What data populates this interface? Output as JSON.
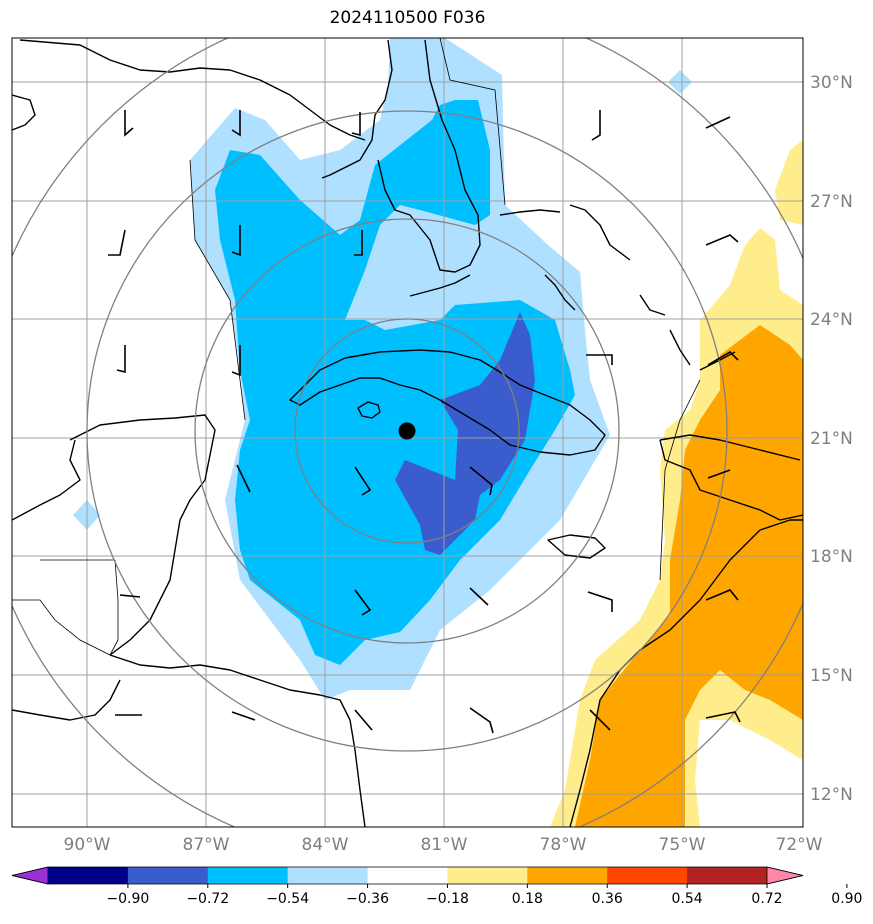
{
  "title": "2024110500 F036",
  "map": {
    "lon_ticks": [
      "90°W",
      "87°W",
      "84°W",
      "81°W",
      "78°W",
      "75°W",
      "72°W"
    ],
    "lat_ticks": [
      "30°N",
      "27°N",
      "24°N",
      "21°N",
      "18°N",
      "15°N",
      "12°N"
    ],
    "storm_center_icon": "filled-circle",
    "range_rings": 4
  },
  "colorbar": {
    "labels": [
      "−0.90",
      "−0.72",
      "−0.54",
      "−0.36",
      "−0.18",
      "0.18",
      "0.36",
      "0.54",
      "0.72",
      "0.90"
    ],
    "colors": [
      "#9b30d8",
      "#00008b",
      "#3a5ccc",
      "#00bfff",
      "#b0e0ff",
      "#ffffff",
      "#ffec8b",
      "#ffa500",
      "#ff4500",
      "#b22222",
      "#ff88aa"
    ]
  },
  "fill_colors": {
    "light_blue": "#b0e0ff",
    "blue": "#00bfff",
    "dark_blue": "#3a5ccc",
    "light_yellow": "#ffec8b",
    "orange": "#ffa500"
  }
}
